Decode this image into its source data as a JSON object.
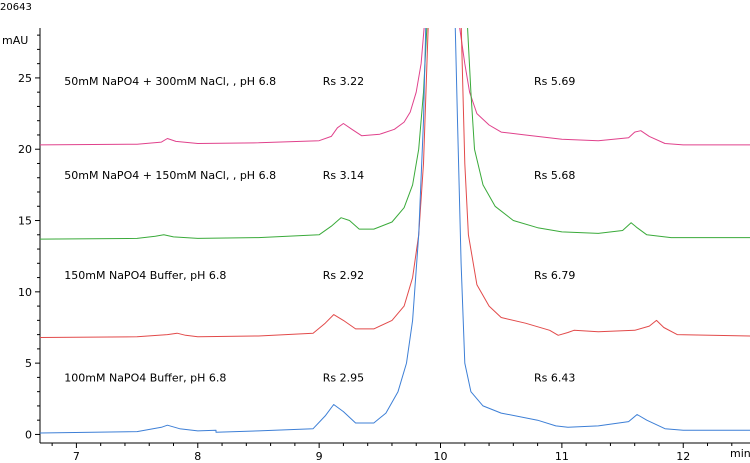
{
  "chart_data": {
    "type": "line",
    "corner_label": "20643",
    "ylabel": "mAU",
    "xlabel": "min",
    "xlim": [
      6.7,
      12.55
    ],
    "ylim": [
      -0.6,
      28.5
    ],
    "x_ticks": [
      7,
      8,
      9,
      10,
      11,
      12
    ],
    "y_ticks": [
      0,
      5,
      10,
      15,
      20,
      25
    ],
    "grid": false,
    "legend": "none",
    "series": [
      {
        "color": "#e0428c",
        "points": [
          [
            6.7,
            20.3
          ],
          [
            7.5,
            20.35
          ],
          [
            7.7,
            20.5
          ],
          [
            7.75,
            20.75
          ],
          [
            7.82,
            20.55
          ],
          [
            8.0,
            20.4
          ],
          [
            8.5,
            20.45
          ],
          [
            9.0,
            20.6
          ],
          [
            9.1,
            20.9
          ],
          [
            9.15,
            21.5
          ],
          [
            9.2,
            21.8
          ],
          [
            9.27,
            21.4
          ],
          [
            9.35,
            20.95
          ],
          [
            9.5,
            21.05
          ],
          [
            9.62,
            21.4
          ],
          [
            9.7,
            21.9
          ],
          [
            9.75,
            22.6
          ],
          [
            9.8,
            24.0
          ],
          [
            9.84,
            26.0
          ],
          [
            9.87,
            29.0
          ],
          [
            10.15,
            29.0
          ],
          [
            10.2,
            26.0
          ],
          [
            10.24,
            24.0
          ],
          [
            10.3,
            22.5
          ],
          [
            10.4,
            21.7
          ],
          [
            10.5,
            21.2
          ],
          [
            10.7,
            21.0
          ],
          [
            11.0,
            20.7
          ],
          [
            11.3,
            20.6
          ],
          [
            11.55,
            20.8
          ],
          [
            11.6,
            21.2
          ],
          [
            11.65,
            21.3
          ],
          [
            11.72,
            20.9
          ],
          [
            11.85,
            20.4
          ],
          [
            12.0,
            20.3
          ],
          [
            12.55,
            20.3
          ]
        ]
      },
      {
        "color": "#3aaa3a",
        "points": [
          [
            6.7,
            13.7
          ],
          [
            7.5,
            13.75
          ],
          [
            7.65,
            13.9
          ],
          [
            7.72,
            14.0
          ],
          [
            7.8,
            13.85
          ],
          [
            8.0,
            13.75
          ],
          [
            8.5,
            13.8
          ],
          [
            9.0,
            14.0
          ],
          [
            9.1,
            14.6
          ],
          [
            9.18,
            15.2
          ],
          [
            9.25,
            15.0
          ],
          [
            9.33,
            14.4
          ],
          [
            9.45,
            14.4
          ],
          [
            9.6,
            14.9
          ],
          [
            9.7,
            15.9
          ],
          [
            9.77,
            17.5
          ],
          [
            9.82,
            20.0
          ],
          [
            9.86,
            24.0
          ],
          [
            9.89,
            29.0
          ],
          [
            10.22,
            29.0
          ],
          [
            10.25,
            24.0
          ],
          [
            10.28,
            20.0
          ],
          [
            10.35,
            17.5
          ],
          [
            10.45,
            16.0
          ],
          [
            10.6,
            15.0
          ],
          [
            10.8,
            14.5
          ],
          [
            11.0,
            14.2
          ],
          [
            11.3,
            14.1
          ],
          [
            11.5,
            14.3
          ],
          [
            11.57,
            14.85
          ],
          [
            11.62,
            14.5
          ],
          [
            11.7,
            14.0
          ],
          [
            11.9,
            13.8
          ],
          [
            12.55,
            13.8
          ]
        ]
      },
      {
        "color": "#e24a4a",
        "points": [
          [
            6.7,
            6.8
          ],
          [
            7.5,
            6.85
          ],
          [
            7.75,
            7.0
          ],
          [
            7.83,
            7.1
          ],
          [
            7.9,
            6.95
          ],
          [
            8.0,
            6.85
          ],
          [
            8.5,
            6.9
          ],
          [
            8.95,
            7.1
          ],
          [
            9.05,
            7.8
          ],
          [
            9.12,
            8.4
          ],
          [
            9.2,
            8.0
          ],
          [
            9.3,
            7.4
          ],
          [
            9.45,
            7.4
          ],
          [
            9.6,
            8.0
          ],
          [
            9.7,
            9.0
          ],
          [
            9.77,
            11.0
          ],
          [
            9.82,
            14.0
          ],
          [
            9.86,
            19.0
          ],
          [
            9.9,
            29.0
          ],
          [
            10.17,
            29.0
          ],
          [
            10.2,
            19.0
          ],
          [
            10.23,
            14.0
          ],
          [
            10.3,
            10.5
          ],
          [
            10.4,
            9.0
          ],
          [
            10.5,
            8.2
          ],
          [
            10.7,
            7.8
          ],
          [
            10.9,
            7.3
          ],
          [
            10.97,
            6.95
          ],
          [
            11.05,
            7.15
          ],
          [
            11.1,
            7.3
          ],
          [
            11.3,
            7.2
          ],
          [
            11.6,
            7.3
          ],
          [
            11.72,
            7.6
          ],
          [
            11.78,
            8.0
          ],
          [
            11.84,
            7.5
          ],
          [
            11.95,
            7.0
          ],
          [
            12.55,
            6.9
          ]
        ]
      },
      {
        "color": "#3d7fd6",
        "points": [
          [
            6.7,
            0.1
          ],
          [
            7.5,
            0.2
          ],
          [
            7.7,
            0.5
          ],
          [
            7.75,
            0.65
          ],
          [
            7.85,
            0.4
          ],
          [
            8.0,
            0.25
          ],
          [
            8.15,
            0.3
          ],
          [
            8.15,
            0.15
          ],
          [
            8.5,
            0.25
          ],
          [
            8.95,
            0.4
          ],
          [
            9.05,
            1.3
          ],
          [
            9.12,
            2.1
          ],
          [
            9.2,
            1.6
          ],
          [
            9.3,
            0.8
          ],
          [
            9.45,
            0.8
          ],
          [
            9.55,
            1.5
          ],
          [
            9.65,
            3.0
          ],
          [
            9.72,
            5.0
          ],
          [
            9.77,
            8.0
          ],
          [
            9.82,
            14.0
          ],
          [
            9.86,
            22.0
          ],
          [
            9.88,
            29.0
          ],
          [
            10.12,
            29.0
          ],
          [
            10.14,
            22.0
          ],
          [
            10.17,
            12.0
          ],
          [
            10.2,
            5.0
          ],
          [
            10.25,
            3.0
          ],
          [
            10.35,
            2.0
          ],
          [
            10.5,
            1.5
          ],
          [
            10.8,
            1.0
          ],
          [
            10.95,
            0.6
          ],
          [
            11.05,
            0.5
          ],
          [
            11.3,
            0.6
          ],
          [
            11.55,
            0.9
          ],
          [
            11.62,
            1.4
          ],
          [
            11.7,
            1.0
          ],
          [
            11.85,
            0.4
          ],
          [
            12.0,
            0.3
          ],
          [
            12.55,
            0.3
          ]
        ]
      }
    ],
    "annotations": [
      {
        "text": "50mM NaPO4 + 300mM  NaCl, , pH 6.8",
        "x": 6.9,
        "y": 24.5
      },
      {
        "text": "Rs 3.22",
        "x": 9.03,
        "y": 24.5
      },
      {
        "text": "Rs 5.69",
        "x": 10.77,
        "y": 24.5
      },
      {
        "text": "50mM NaPO4 + 150mM NaCl, , pH 6.8",
        "x": 6.9,
        "y": 17.9
      },
      {
        "text": "Rs 3.14",
        "x": 9.03,
        "y": 17.9
      },
      {
        "text": "Rs 5.68",
        "x": 10.77,
        "y": 17.9
      },
      {
        "text": "150mM NaPO4 Buffer, pH 6.8",
        "x": 6.9,
        "y": 10.9
      },
      {
        "text": "Rs 2.92",
        "x": 9.03,
        "y": 10.9
      },
      {
        "text": "Rs 6.79",
        "x": 10.77,
        "y": 10.9
      },
      {
        "text": "100mM NaPO4 Buffer, pH 6.8",
        "x": 6.9,
        "y": 3.7
      },
      {
        "text": "Rs 2.95",
        "x": 9.03,
        "y": 3.7
      },
      {
        "text": "Rs 6.43",
        "x": 10.77,
        "y": 3.7
      }
    ]
  }
}
